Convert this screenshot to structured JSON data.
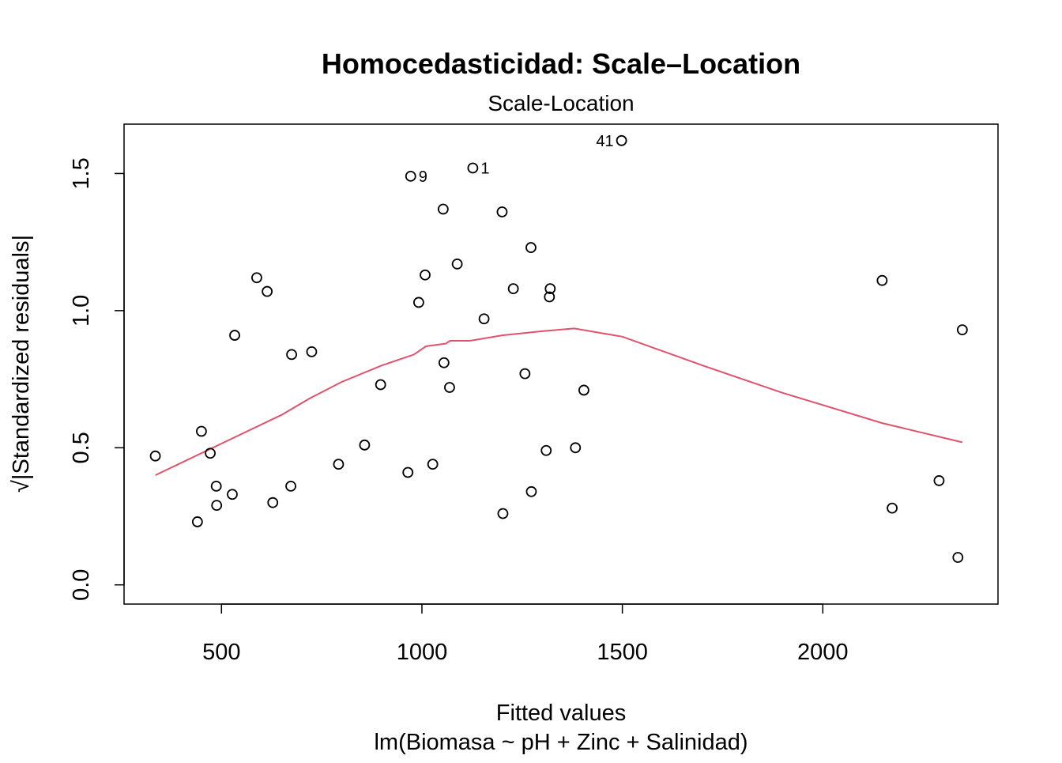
{
  "chart_data": {
    "type": "scatter",
    "title": "Homocedasticidad: Scale–Location",
    "subtitle": "Scale-Location",
    "xlabel": "Fitted values",
    "xlabel2": "lm(Biomasa ~ pH + Zinc + Salinidad)",
    "ylabel": "√|Standardized residuals|",
    "xlim": [
      257,
      2437
    ],
    "ylim": [
      -0.07,
      1.68
    ],
    "xticks": [
      500,
      1000,
      1500,
      2000
    ],
    "yticks": [
      0.0,
      0.5,
      1.0,
      1.5
    ],
    "xtick_labels": [
      "500",
      "1000",
      "1500",
      "2000"
    ],
    "ytick_labels": [
      "0.0",
      "0.5",
      "1.0",
      "1.5"
    ],
    "smooth_color": "#DF536B",
    "points": [
      {
        "x": 335,
        "y": 0.47
      },
      {
        "x": 440,
        "y": 0.23
      },
      {
        "x": 450,
        "y": 0.56
      },
      {
        "x": 472,
        "y": 0.48
      },
      {
        "x": 487,
        "y": 0.36
      },
      {
        "x": 488,
        "y": 0.29
      },
      {
        "x": 527,
        "y": 0.33
      },
      {
        "x": 533,
        "y": 0.91
      },
      {
        "x": 588,
        "y": 1.12
      },
      {
        "x": 614,
        "y": 1.07
      },
      {
        "x": 628,
        "y": 0.3
      },
      {
        "x": 673,
        "y": 0.36
      },
      {
        "x": 675,
        "y": 0.84
      },
      {
        "x": 725,
        "y": 0.85
      },
      {
        "x": 792,
        "y": 0.44
      },
      {
        "x": 857,
        "y": 0.51
      },
      {
        "x": 897,
        "y": 0.73
      },
      {
        "x": 965,
        "y": 0.41
      },
      {
        "x": 972,
        "y": 1.49,
        "label": "9"
      },
      {
        "x": 992,
        "y": 1.03
      },
      {
        "x": 1008,
        "y": 1.13
      },
      {
        "x": 1027,
        "y": 0.44
      },
      {
        "x": 1053,
        "y": 1.37
      },
      {
        "x": 1055,
        "y": 0.81
      },
      {
        "x": 1069,
        "y": 0.72
      },
      {
        "x": 1088,
        "y": 1.17
      },
      {
        "x": 1127,
        "y": 1.52,
        "label": "1"
      },
      {
        "x": 1155,
        "y": 0.97
      },
      {
        "x": 1200,
        "y": 1.36
      },
      {
        "x": 1202,
        "y": 0.26
      },
      {
        "x": 1228,
        "y": 1.08
      },
      {
        "x": 1257,
        "y": 0.77
      },
      {
        "x": 1272,
        "y": 1.23
      },
      {
        "x": 1273,
        "y": 0.34
      },
      {
        "x": 1310,
        "y": 0.49
      },
      {
        "x": 1318,
        "y": 1.05
      },
      {
        "x": 1320,
        "y": 1.08
      },
      {
        "x": 1383,
        "y": 0.5
      },
      {
        "x": 1404,
        "y": 0.71
      },
      {
        "x": 1498,
        "y": 1.62,
        "label": "41"
      },
      {
        "x": 2148,
        "y": 1.11
      },
      {
        "x": 2173,
        "y": 0.28
      },
      {
        "x": 2290,
        "y": 0.38
      },
      {
        "x": 2337,
        "y": 0.1
      },
      {
        "x": 2348,
        "y": 0.93
      }
    ],
    "smooth_line": [
      {
        "x": 335,
        "y": 0.4
      },
      {
        "x": 450,
        "y": 0.48
      },
      {
        "x": 550,
        "y": 0.55
      },
      {
        "x": 650,
        "y": 0.62
      },
      {
        "x": 720,
        "y": 0.68
      },
      {
        "x": 800,
        "y": 0.74
      },
      {
        "x": 900,
        "y": 0.8
      },
      {
        "x": 980,
        "y": 0.84
      },
      {
        "x": 1010,
        "y": 0.87
      },
      {
        "x": 1060,
        "y": 0.88
      },
      {
        "x": 1070,
        "y": 0.89
      },
      {
        "x": 1120,
        "y": 0.89
      },
      {
        "x": 1200,
        "y": 0.91
      },
      {
        "x": 1300,
        "y": 0.925
      },
      {
        "x": 1380,
        "y": 0.935
      },
      {
        "x": 1500,
        "y": 0.905
      },
      {
        "x": 1700,
        "y": 0.8
      },
      {
        "x": 1900,
        "y": 0.7
      },
      {
        "x": 2148,
        "y": 0.59
      },
      {
        "x": 2348,
        "y": 0.52
      }
    ]
  }
}
